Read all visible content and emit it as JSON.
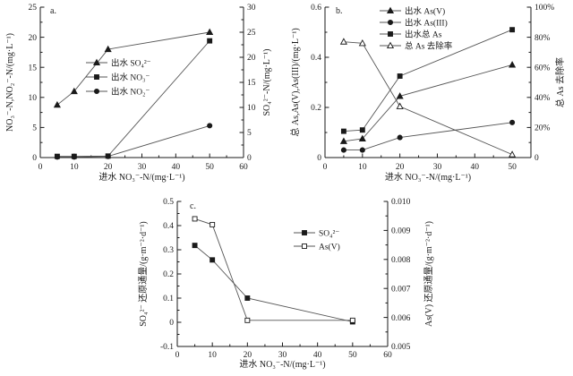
{
  "figure": {
    "background": "#ffffff",
    "axis_color": "#1a1a1a",
    "line_color": "#555555",
    "marker_color": "#1a1a1a"
  },
  "chart_data": [
    {
      "type": "line",
      "panel_label": "a.",
      "x_axis": {
        "label": "进水 NO₃⁻-N/(mg·L⁻¹)",
        "min": 0,
        "max": 60,
        "ticks": [
          0,
          10,
          20,
          30,
          40,
          50,
          60
        ],
        "tick_labels": [
          "0",
          "10",
          "20",
          "30",
          "40",
          "50",
          "60"
        ],
        "minor_step": 5
      },
      "left_axis": {
        "label": "NO₃⁻-N,NO₂⁻-N/(mg·L⁻¹)",
        "min": 0,
        "max": 25,
        "ticks": [
          0,
          5,
          10,
          15,
          20,
          25
        ],
        "tick_labels": [
          "0",
          "5",
          "10",
          "15",
          "20",
          "25"
        ],
        "minor_step": 2.5
      },
      "right_axis": {
        "label": "SO₄²⁻-N/(mg·L⁻¹)",
        "min": 0,
        "max": 30,
        "ticks": [
          0,
          5,
          10,
          15,
          20,
          25,
          30
        ],
        "tick_labels": [
          "0",
          "5",
          "10",
          "15",
          "20",
          "25",
          "30"
        ],
        "minor_step": 2.5
      },
      "grid": false,
      "legend_position": "inside-center-left",
      "series": [
        {
          "name": "出水 SO₄²⁻",
          "marker": "triangle-filled",
          "axis": "right",
          "x": [
            5,
            10,
            20,
            50
          ],
          "y": [
            10.5,
            13.2,
            21.6,
            25.0
          ]
        },
        {
          "name": "出水 NO₃⁻",
          "marker": "square-filled",
          "axis": "left",
          "x": [
            5,
            10,
            20,
            50
          ],
          "y": [
            0.2,
            0.2,
            0.25,
            19.4
          ]
        },
        {
          "name": "出水 NO₂⁻",
          "marker": "circle-filled",
          "axis": "left",
          "x": [
            5,
            10,
            20,
            50
          ],
          "y": [
            0.1,
            0.1,
            0.2,
            5.3
          ]
        }
      ]
    },
    {
      "type": "line",
      "panel_label": "b.",
      "x_axis": {
        "label": "进水 NO₃⁻-N/(mg·L⁻¹)",
        "min": 0,
        "max": 55,
        "ticks": [
          0,
          10,
          20,
          30,
          40,
          50
        ],
        "tick_labels": [
          "0",
          "10",
          "20",
          "30",
          "40",
          "50"
        ],
        "minor_step": 5
      },
      "left_axis": {
        "label": "总 As,As(V),As(III)/(mg·L⁻¹)",
        "min": 0,
        "max": 0.6,
        "ticks": [
          0,
          0.2,
          0.4,
          0.6
        ],
        "tick_labels": [
          "0",
          "0.2",
          "0.4",
          "0.6"
        ],
        "minor_step": 0.1
      },
      "right_axis": {
        "label": "总 As 去除率",
        "min": 0,
        "max": 100,
        "ticks": [
          0,
          20,
          40,
          60,
          80,
          100
        ],
        "tick_labels": [
          "0",
          "20%",
          "40%",
          "60%",
          "80%",
          "100%"
        ],
        "minor_step": 10
      },
      "grid": false,
      "legend_position": "inside-top-center",
      "series": [
        {
          "name": "出水 As(V)",
          "marker": "triangle-filled",
          "axis": "left",
          "x": [
            5,
            10,
            20,
            50
          ],
          "y": [
            0.065,
            0.075,
            0.245,
            0.37
          ]
        },
        {
          "name": "出水 As(III)",
          "marker": "circle-filled",
          "axis": "left",
          "x": [
            5,
            10,
            20,
            50
          ],
          "y": [
            0.03,
            0.03,
            0.08,
            0.14
          ]
        },
        {
          "name": "出水总 As",
          "marker": "square-filled",
          "axis": "left",
          "x": [
            5,
            10,
            20,
            50
          ],
          "y": [
            0.105,
            0.11,
            0.325,
            0.51
          ]
        },
        {
          "name": "总 As 去除率",
          "marker": "triangle-open",
          "axis": "right",
          "x": [
            5,
            10,
            20,
            50
          ],
          "y": [
            77,
            76,
            34,
            2
          ]
        }
      ]
    },
    {
      "type": "line",
      "panel_label": "c.",
      "x_axis": {
        "label": "进水 NO₃⁻-N/(mg·L⁻¹)",
        "min": 0,
        "max": 60,
        "ticks": [
          0,
          10,
          20,
          30,
          40,
          50,
          60
        ],
        "tick_labels": [
          "0",
          "10",
          "20",
          "30",
          "40",
          "50",
          "60"
        ],
        "minor_step": 5
      },
      "left_axis": {
        "label": "SO₄²⁻ 还原通量/(g·m⁻²·d⁻¹)",
        "min": -0.1,
        "max": 0.5,
        "ticks": [
          -0.1,
          0,
          0.1,
          0.2,
          0.3,
          0.4,
          0.5
        ],
        "tick_labels": [
          "-0.1",
          "0",
          "0.1",
          "0.2",
          "0.3",
          "0.4",
          "0.5"
        ],
        "minor_step": 0.05
      },
      "right_axis": {
        "label": "As(V) 还原通量/(g·m⁻²·d⁻¹)",
        "min": 0.005,
        "max": 0.01,
        "ticks": [
          0.005,
          0.006,
          0.007,
          0.008,
          0.009,
          0.01
        ],
        "tick_labels": [
          "0.005",
          "0.006",
          "0.007",
          "0.008",
          "0.009",
          "0.010"
        ],
        "minor_step": 0.0005
      },
      "grid": false,
      "legend_position": "inside-middle-right",
      "series": [
        {
          "name": "SO₄²⁻",
          "marker": "square-filled",
          "axis": "left",
          "x": [
            5,
            10,
            20,
            50
          ],
          "y": [
            0.318,
            0.258,
            0.1,
            0.002
          ]
        },
        {
          "name": "As(V)",
          "marker": "square-open",
          "axis": "right",
          "x": [
            5,
            10,
            20,
            50
          ],
          "y": [
            0.0094,
            0.0092,
            0.0059,
            0.0059
          ]
        }
      ]
    }
  ]
}
